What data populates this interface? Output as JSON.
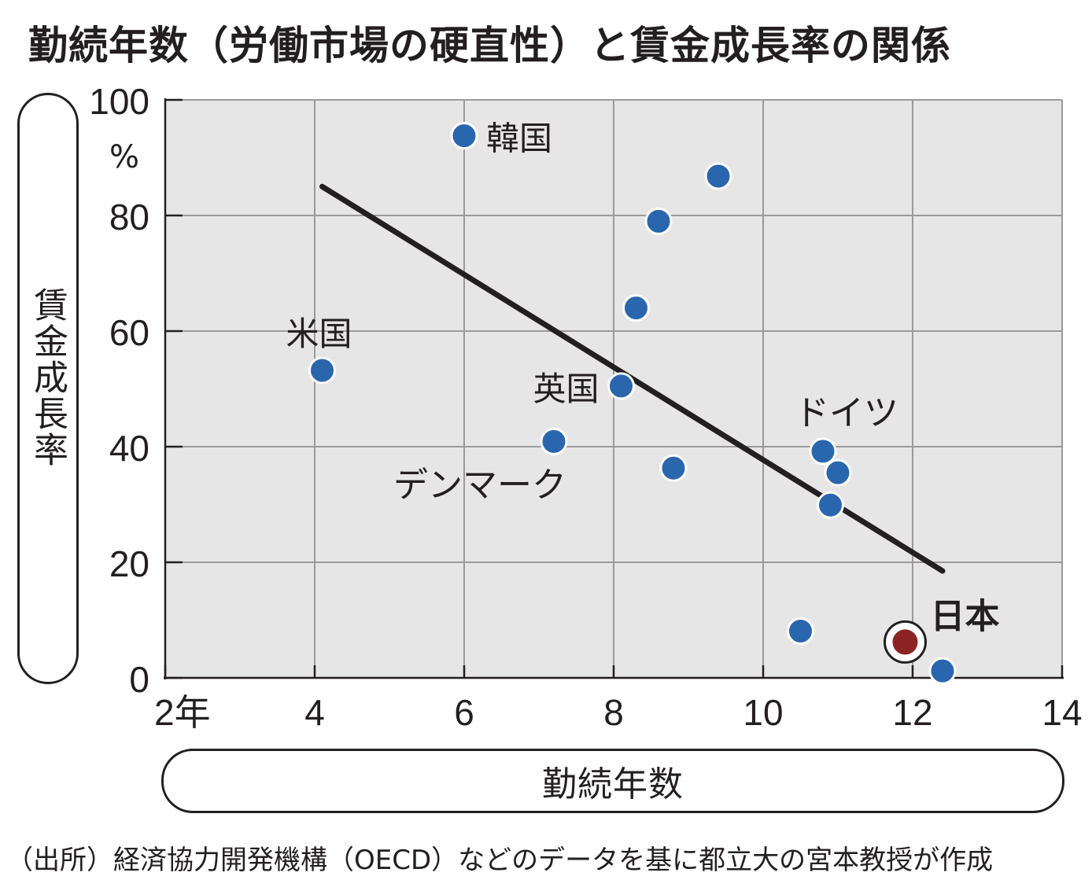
{
  "title": "勤続年数（労働市場の硬直性）と賃金成長率の関係",
  "source": "（出所）経済協力開発機構（OECD）などのデータを基に都立大の宮本教授が作成",
  "chart_data": {
    "type": "scatter",
    "title": "勤続年数（労働市場の硬直性）と賃金成長率の関係",
    "xlabel": "勤続年数",
    "ylabel": "賃金成長率",
    "xlim": [
      2,
      14
    ],
    "ylim": [
      0,
      100
    ],
    "x_ticks": [
      2,
      4,
      6,
      8,
      10,
      12,
      14
    ],
    "x_tick_labels": [
      "2年",
      "4",
      "6",
      "8",
      "10",
      "12",
      "14"
    ],
    "y_ticks": [
      0,
      20,
      40,
      60,
      80,
      100
    ],
    "y_tick_labels": [
      "0",
      "20",
      "40",
      "60",
      "80",
      "100"
    ],
    "y_unit": "%",
    "grid": true,
    "points": [
      {
        "x": 6.0,
        "y": 93.8,
        "label": "韓国"
      },
      {
        "x": 9.4,
        "y": 86.8,
        "label": ""
      },
      {
        "x": 8.6,
        "y": 79.0,
        "label": ""
      },
      {
        "x": 8.3,
        "y": 64.0,
        "label": ""
      },
      {
        "x": 4.1,
        "y": 53.2,
        "label": "米国"
      },
      {
        "x": 8.1,
        "y": 50.5,
        "label": "英国"
      },
      {
        "x": 7.2,
        "y": 40.9,
        "label": "デンマーク"
      },
      {
        "x": 8.8,
        "y": 36.3,
        "label": ""
      },
      {
        "x": 10.8,
        "y": 39.2,
        "label": "ドイツ"
      },
      {
        "x": 11.0,
        "y": 35.5,
        "label": ""
      },
      {
        "x": 10.9,
        "y": 29.9,
        "label": ""
      },
      {
        "x": 10.5,
        "y": 8.1,
        "label": ""
      },
      {
        "x": 12.4,
        "y": 1.2,
        "label": ""
      },
      {
        "x": 11.9,
        "y": 6.2,
        "label": "日本",
        "highlight": true
      }
    ],
    "trendline": {
      "x": [
        4.1,
        12.4
      ],
      "y": [
        85.0,
        18.5
      ]
    },
    "colors": {
      "point": "#2a66ad",
      "highlight": "#8b2323",
      "plot_bg": "#e6e6e6",
      "grid": "#9a9a9a",
      "trend": "#231f20",
      "text": "#231f20"
    }
  }
}
